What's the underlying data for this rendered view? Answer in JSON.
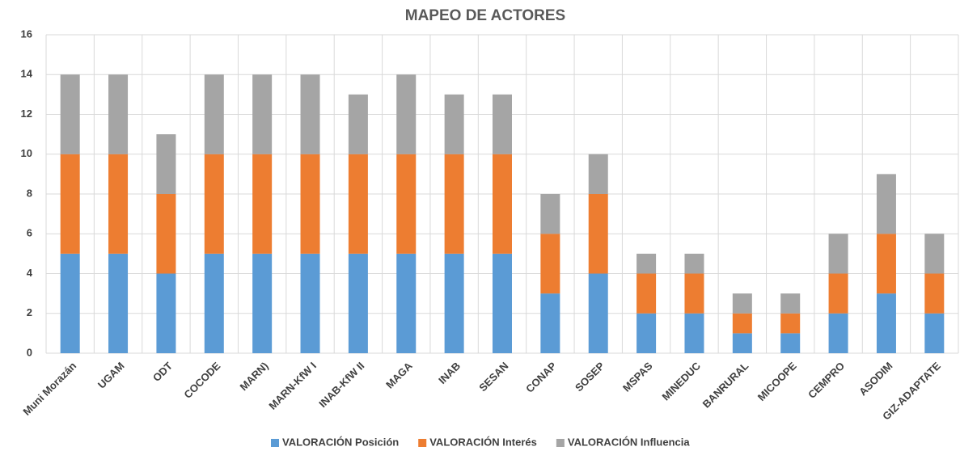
{
  "chart_data": {
    "type": "stacked_bar",
    "title": "MAPEO DE ACTORES",
    "categories": [
      "Muni Morazán",
      "UGAM",
      "ODT",
      "COCODE",
      "MARN)",
      "MARN-KfW I",
      "INAB-KfW II",
      "MAGA",
      "INAB",
      "SESAN",
      "CONAP",
      "SOSEP",
      "MSPAS",
      "MINEDUC",
      "BANRURAL",
      "MICOOPE",
      "CEMPRO",
      "ASODIM",
      "GIZ-ADAPTATE"
    ],
    "series": [
      {
        "name": "VALORACIÓN Posición",
        "color": "#5b9bd5",
        "values": [
          5,
          5,
          4,
          5,
          5,
          5,
          5,
          5,
          5,
          5,
          3,
          4,
          2,
          2,
          1,
          1,
          2,
          3,
          2
        ]
      },
      {
        "name": "VALORACIÓN Interés",
        "color": "#ed7d31",
        "values": [
          5,
          5,
          4,
          5,
          5,
          5,
          5,
          5,
          5,
          5,
          3,
          4,
          2,
          2,
          1,
          1,
          2,
          3,
          2
        ]
      },
      {
        "name": "VALORACIÓN Influencia",
        "color": "#a5a5a5",
        "values": [
          4,
          4,
          3,
          4,
          4,
          4,
          3,
          4,
          3,
          3,
          2,
          2,
          1,
          1,
          1,
          1,
          2,
          3,
          2
        ]
      }
    ],
    "ylim": [
      0,
      16
    ],
    "yticks": [
      0,
      2,
      4,
      6,
      8,
      10,
      12,
      14,
      16
    ],
    "grid": true,
    "legend": "bottom"
  }
}
